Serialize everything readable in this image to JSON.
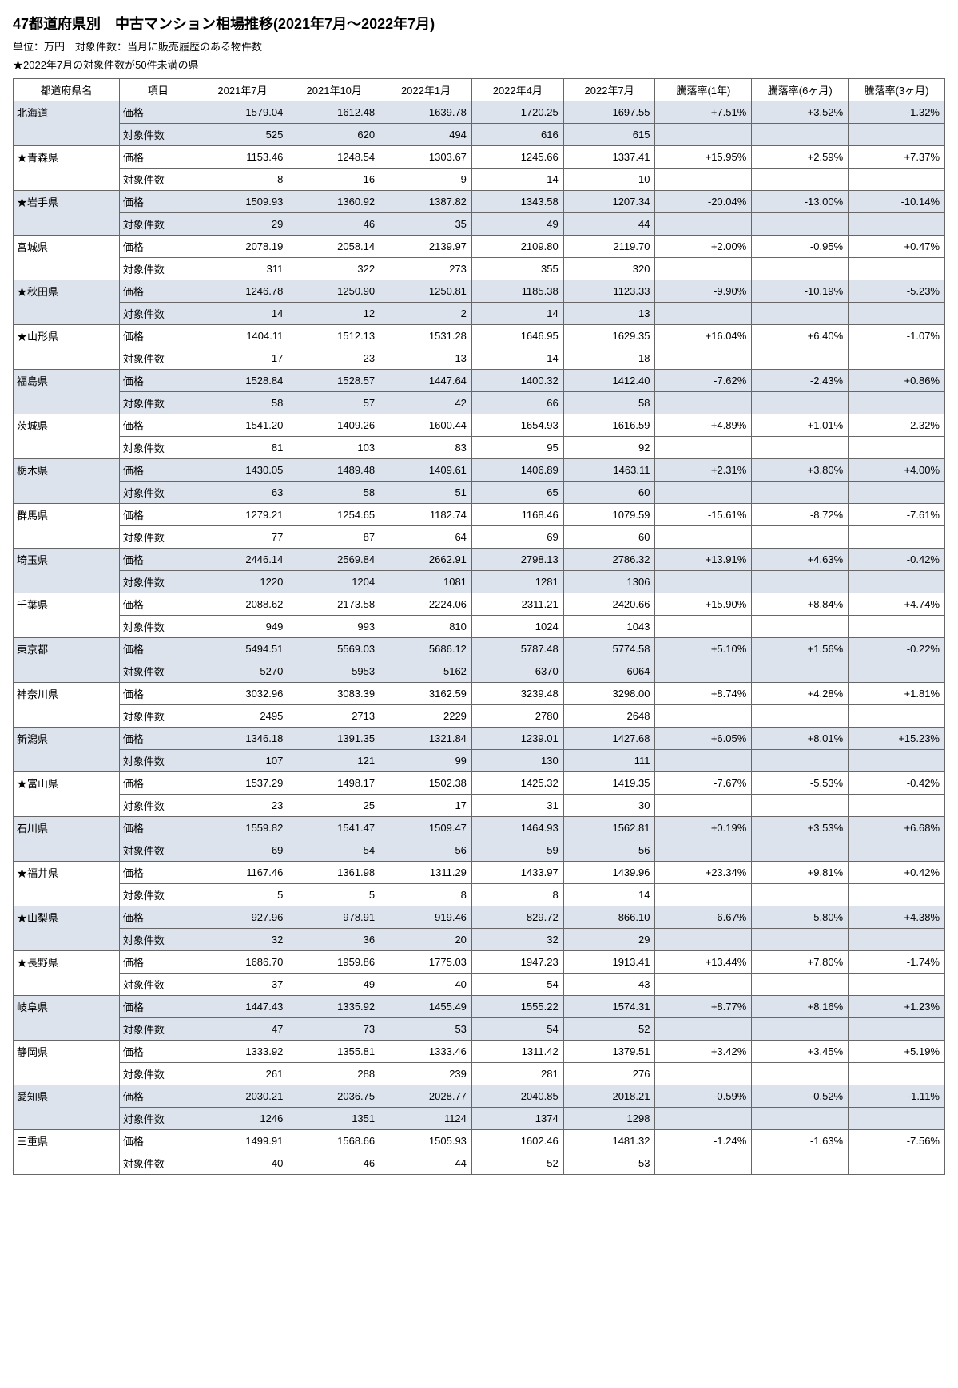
{
  "header": {
    "title": "47都道府県別　中古マンション相場推移(2021年7月〜2022年7月)",
    "subtitle": "単位：万円　対象件数：当月に販売履歴のある物件数",
    "note": "★2022年7月の対象件数が50件未満の県"
  },
  "table": {
    "columns": [
      "都道府県名",
      "項目",
      "2021年7月",
      "2021年10月",
      "2022年1月",
      "2022年4月",
      "2022年7月",
      "騰落率(1年)",
      "騰落率(6ヶ月)",
      "騰落率(3ヶ月)"
    ],
    "item_labels": {
      "price": "価格",
      "count": "対象件数"
    },
    "prefectures": [
      {
        "name": "北海道",
        "shade": true,
        "price": [
          "1579.04",
          "1612.48",
          "1639.78",
          "1720.25",
          "1697.55"
        ],
        "count": [
          "525",
          "620",
          "494",
          "616",
          "615"
        ],
        "rates": [
          "+7.51%",
          "+3.52%",
          "-1.32%"
        ]
      },
      {
        "name": "★青森県",
        "shade": false,
        "price": [
          "1153.46",
          "1248.54",
          "1303.67",
          "1245.66",
          "1337.41"
        ],
        "count": [
          "8",
          "16",
          "9",
          "14",
          "10"
        ],
        "rates": [
          "+15.95%",
          "+2.59%",
          "+7.37%"
        ]
      },
      {
        "name": "★岩手県",
        "shade": true,
        "price": [
          "1509.93",
          "1360.92",
          "1387.82",
          "1343.58",
          "1207.34"
        ],
        "count": [
          "29",
          "46",
          "35",
          "49",
          "44"
        ],
        "rates": [
          "-20.04%",
          "-13.00%",
          "-10.14%"
        ]
      },
      {
        "name": "宮城県",
        "shade": false,
        "price": [
          "2078.19",
          "2058.14",
          "2139.97",
          "2109.80",
          "2119.70"
        ],
        "count": [
          "311",
          "322",
          "273",
          "355",
          "320"
        ],
        "rates": [
          "+2.00%",
          "-0.95%",
          "+0.47%"
        ]
      },
      {
        "name": "★秋田県",
        "shade": true,
        "price": [
          "1246.78",
          "1250.90",
          "1250.81",
          "1185.38",
          "1123.33"
        ],
        "count": [
          "14",
          "12",
          "2",
          "14",
          "13"
        ],
        "rates": [
          "-9.90%",
          "-10.19%",
          "-5.23%"
        ]
      },
      {
        "name": "★山形県",
        "shade": false,
        "price": [
          "1404.11",
          "1512.13",
          "1531.28",
          "1646.95",
          "1629.35"
        ],
        "count": [
          "17",
          "23",
          "13",
          "14",
          "18"
        ],
        "rates": [
          "+16.04%",
          "+6.40%",
          "-1.07%"
        ]
      },
      {
        "name": "福島県",
        "shade": true,
        "price": [
          "1528.84",
          "1528.57",
          "1447.64",
          "1400.32",
          "1412.40"
        ],
        "count": [
          "58",
          "57",
          "42",
          "66",
          "58"
        ],
        "rates": [
          "-7.62%",
          "-2.43%",
          "+0.86%"
        ]
      },
      {
        "name": "茨城県",
        "shade": false,
        "price": [
          "1541.20",
          "1409.26",
          "1600.44",
          "1654.93",
          "1616.59"
        ],
        "count": [
          "81",
          "103",
          "83",
          "95",
          "92"
        ],
        "rates": [
          "+4.89%",
          "+1.01%",
          "-2.32%"
        ]
      },
      {
        "name": "栃木県",
        "shade": true,
        "price": [
          "1430.05",
          "1489.48",
          "1409.61",
          "1406.89",
          "1463.11"
        ],
        "count": [
          "63",
          "58",
          "51",
          "65",
          "60"
        ],
        "rates": [
          "+2.31%",
          "+3.80%",
          "+4.00%"
        ]
      },
      {
        "name": "群馬県",
        "shade": false,
        "price": [
          "1279.21",
          "1254.65",
          "1182.74",
          "1168.46",
          "1079.59"
        ],
        "count": [
          "77",
          "87",
          "64",
          "69",
          "60"
        ],
        "rates": [
          "-15.61%",
          "-8.72%",
          "-7.61%"
        ]
      },
      {
        "name": "埼玉県",
        "shade": true,
        "price": [
          "2446.14",
          "2569.84",
          "2662.91",
          "2798.13",
          "2786.32"
        ],
        "count": [
          "1220",
          "1204",
          "1081",
          "1281",
          "1306"
        ],
        "rates": [
          "+13.91%",
          "+4.63%",
          "-0.42%"
        ]
      },
      {
        "name": "千葉県",
        "shade": false,
        "price": [
          "2088.62",
          "2173.58",
          "2224.06",
          "2311.21",
          "2420.66"
        ],
        "count": [
          "949",
          "993",
          "810",
          "1024",
          "1043"
        ],
        "rates": [
          "+15.90%",
          "+8.84%",
          "+4.74%"
        ]
      },
      {
        "name": "東京都",
        "shade": true,
        "price": [
          "5494.51",
          "5569.03",
          "5686.12",
          "5787.48",
          "5774.58"
        ],
        "count": [
          "5270",
          "5953",
          "5162",
          "6370",
          "6064"
        ],
        "rates": [
          "+5.10%",
          "+1.56%",
          "-0.22%"
        ]
      },
      {
        "name": "神奈川県",
        "shade": false,
        "price": [
          "3032.96",
          "3083.39",
          "3162.59",
          "3239.48",
          "3298.00"
        ],
        "count": [
          "2495",
          "2713",
          "2229",
          "2780",
          "2648"
        ],
        "rates": [
          "+8.74%",
          "+4.28%",
          "+1.81%"
        ]
      },
      {
        "name": "新潟県",
        "shade": true,
        "price": [
          "1346.18",
          "1391.35",
          "1321.84",
          "1239.01",
          "1427.68"
        ],
        "count": [
          "107",
          "121",
          "99",
          "130",
          "111"
        ],
        "rates": [
          "+6.05%",
          "+8.01%",
          "+15.23%"
        ]
      },
      {
        "name": "★富山県",
        "shade": false,
        "price": [
          "1537.29",
          "1498.17",
          "1502.38",
          "1425.32",
          "1419.35"
        ],
        "count": [
          "23",
          "25",
          "17",
          "31",
          "30"
        ],
        "rates": [
          "-7.67%",
          "-5.53%",
          "-0.42%"
        ]
      },
      {
        "name": "石川県",
        "shade": true,
        "price": [
          "1559.82",
          "1541.47",
          "1509.47",
          "1464.93",
          "1562.81"
        ],
        "count": [
          "69",
          "54",
          "56",
          "59",
          "56"
        ],
        "rates": [
          "+0.19%",
          "+3.53%",
          "+6.68%"
        ]
      },
      {
        "name": "★福井県",
        "shade": false,
        "price": [
          "1167.46",
          "1361.98",
          "1311.29",
          "1433.97",
          "1439.96"
        ],
        "count": [
          "5",
          "5",
          "8",
          "8",
          "14"
        ],
        "rates": [
          "+23.34%",
          "+9.81%",
          "+0.42%"
        ]
      },
      {
        "name": "★山梨県",
        "shade": true,
        "price": [
          "927.96",
          "978.91",
          "919.46",
          "829.72",
          "866.10"
        ],
        "count": [
          "32",
          "36",
          "20",
          "32",
          "29"
        ],
        "rates": [
          "-6.67%",
          "-5.80%",
          "+4.38%"
        ]
      },
      {
        "name": "★長野県",
        "shade": false,
        "price": [
          "1686.70",
          "1959.86",
          "1775.03",
          "1947.23",
          "1913.41"
        ],
        "count": [
          "37",
          "49",
          "40",
          "54",
          "43"
        ],
        "rates": [
          "+13.44%",
          "+7.80%",
          "-1.74%"
        ]
      },
      {
        "name": "岐阜県",
        "shade": true,
        "price": [
          "1447.43",
          "1335.92",
          "1455.49",
          "1555.22",
          "1574.31"
        ],
        "count": [
          "47",
          "73",
          "53",
          "54",
          "52"
        ],
        "rates": [
          "+8.77%",
          "+8.16%",
          "+1.23%"
        ]
      },
      {
        "name": "静岡県",
        "shade": false,
        "price": [
          "1333.92",
          "1355.81",
          "1333.46",
          "1311.42",
          "1379.51"
        ],
        "count": [
          "261",
          "288",
          "239",
          "281",
          "276"
        ],
        "rates": [
          "+3.42%",
          "+3.45%",
          "+5.19%"
        ]
      },
      {
        "name": "愛知県",
        "shade": true,
        "price": [
          "2030.21",
          "2036.75",
          "2028.77",
          "2040.85",
          "2018.21"
        ],
        "count": [
          "1246",
          "1351",
          "1124",
          "1374",
          "1298"
        ],
        "rates": [
          "-0.59%",
          "-0.52%",
          "-1.11%"
        ]
      },
      {
        "name": "三重県",
        "shade": false,
        "price": [
          "1499.91",
          "1568.66",
          "1505.93",
          "1602.46",
          "1481.32"
        ],
        "count": [
          "40",
          "46",
          "44",
          "52",
          "53"
        ],
        "rates": [
          "-1.24%",
          "-1.63%",
          "-7.56%"
        ]
      }
    ]
  }
}
